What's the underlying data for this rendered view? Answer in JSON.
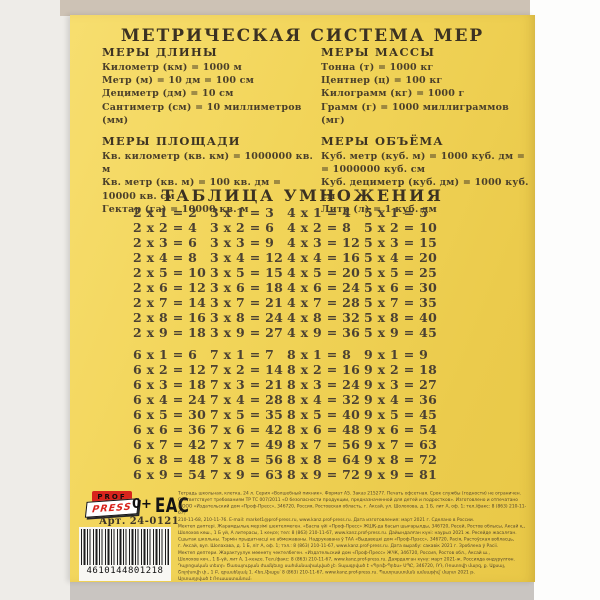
{
  "colors": {
    "page_yellow": "#f1d456",
    "logo_red": "#d7241c",
    "text_dark": "#3c3222",
    "backdrop_beige": "#cdc2b5"
  },
  "metric": {
    "title": "МЕТРИЧЕСКАЯ СИСТЕМА МЕР",
    "sections": [
      {
        "heading": "МЕРЫ ДЛИНЫ",
        "items": [
          "Километр (км) = 1000 м",
          "Метр (м) = 10 дм = 100 см",
          "Дециметр (дм) = 10 см",
          "Сантиметр (см) = 10 миллиметров (мм)"
        ]
      },
      {
        "heading": "МЕРЫ МАССЫ",
        "items": [
          "Тонна (т) = 1000 кг",
          "Центнер (ц) = 100 кг",
          "Килограмм (кг) = 1000 г",
          "Грамм (г) = 1000 миллиграммов (мг)"
        ]
      },
      {
        "heading": "МЕРЫ ПЛОЩАДИ",
        "items": [
          "Кв. километр (кв. км) = 1000000 кв. м",
          "Кв. метр (кв. м) = 100 кв. дм = 10000 кв. см",
          "Гектар (га) = 10000 кв. м"
        ]
      },
      {
        "heading": "МЕРЫ ОБЪЁМА",
        "items": [
          "Куб. метр (куб. м) = 1000 куб. дм =",
          "= 1000000 куб. см",
          "Куб. дециметр (куб. дм) = 1000 куб. см",
          "Литр (л) = 1 куб. дм"
        ]
      }
    ]
  },
  "multiplication": {
    "title": "ТАБЛИЦА УМНОЖЕНИЯ",
    "block1": [
      [
        "2 х 1 = 2",
        "2 х 2 = 4",
        "2 х 3 = 6",
        "2 х 4 = 8",
        "2 х 5 = 10",
        "2 х 6 = 12",
        "2 х 7 = 14",
        "2 х 8 = 16",
        "2 х 9 = 18"
      ],
      [
        "3 х 1 = 3",
        "3 х 2 = 6",
        "3 х 3 = 9",
        "3 х 4 = 12",
        "3 х 5 = 15",
        "3 х 6 = 18",
        "3 х 7 = 21",
        "3 х 8 = 24",
        "3 х 9 = 27"
      ],
      [
        "4 х 1 = 4",
        "4 х 2 = 8",
        "4 х 3 = 12",
        "4 х 4 = 16",
        "4 х 5 = 20",
        "4 х 6 = 24",
        "4 х 7 = 28",
        "4 х 8 = 32",
        "4 х 9 = 36"
      ],
      [
        "5 х 1 = 5",
        "5 х 2 = 10",
        "5 х 3 = 15",
        "5 х 4 = 20",
        "5 х 5 = 25",
        "5 х 6 = 30",
        "5 х 7 = 35",
        "5 х 8 = 40",
        "5 х 9 = 45"
      ]
    ],
    "block2": [
      [
        "6 х 1 = 6",
        "6 х 2 = 12",
        "6 х 3 = 18",
        "6 х 4 = 24",
        "6 х 5 = 30",
        "6 х 6 = 36",
        "6 х 7 = 42",
        "6 х 8 = 48",
        "6 х 9 = 54"
      ],
      [
        "7 х 1 = 7",
        "7 х 2 = 14",
        "7 х 3 = 21",
        "7 х 4 = 28",
        "7 х 5 = 35",
        "7 х 6 = 42",
        "7 х 7 = 49",
        "7 х 8 = 56",
        "7 х 9 = 63"
      ],
      [
        "8 х 1 = 8",
        "8 х 2 = 16",
        "8 х 3 = 24",
        "8 х 4 = 32",
        "8 х 5 = 40",
        "8 х 6 = 48",
        "8 х 7 = 56",
        "8 х 8 = 64",
        "8 х 9 = 72"
      ],
      [
        "9 х 1 = 9",
        "9 х 2 = 18",
        "9 х 3 = 27",
        "9 х 4 = 36",
        "9 х 5 = 45",
        "9 х 6 = 54",
        "9 х 7 = 63",
        "9 х 8 = 72",
        "9 х 9 = 81"
      ]
    ]
  },
  "footer": {
    "logo_top": "PROF",
    "logo_bottom": "PRESS",
    "age_rating": "0+",
    "eac_label": "ЕАС",
    "art_number": "Арт. 24-0121",
    "barcode_digits": "4610144801218",
    "fine_print_lines": [
      "Тетрадь школьная, клетка, 24 л. Серия «Волшебный пикник». Формат А5. Заказ 215277. Печать офсетная. Срок службы (годности) не ограничен.",
      "Соответствует требованиям ТР ТС 007/2011 «О безопасности продукции, предназначенной для детей и подростков». Изготовлено и отпечатано",
      "в ООО «Издательский дом «Проф-Пресс», 346720, Россия, Ростовская область, г. Аксай, ул. Шолохова, д. 1 Б, лит А, оф. 1; тел./факс: 8 (863) 210-11-67,",
      "210-11-68, 210-11-76. E-mail: market1@prof-press.ru, www.kanz.prof-press.ru. Дата изготовления: март 2021 г. Сделано в России.",
      "Мектеп дәптері. Жарамдылық мерзімі шектелмеген. «Баспа үйі «Проф-Пресс» ЖШҚ-да басып шығарылды, 346720, Ресей, Ростов облысы, Аксай қ.,",
      "Шолохов көш., 1 Б үй, А литерасы, 1 кеңсе; тел: 8 (863) 210-11-67, www.kanz.prof-press.ru. Дайындалған күні: наурыз 2021 ж. Ресейде жасалған.",
      "Сшытак школьны. Тэрмін прыдатнасці не абмежаваны. Надрукавана ў ТАА «Выдавецкі дом «Проф-Прэсс», 346720, Расія, Растоўская вобласць,",
      "г. Аксай, вул. Шолахава, д. 1 Б, літ А, оф. 1; тэл.: 8 (863) 210-11-67, www.kanz.prof-press.ru. Дата вырабу: сакавік 2021 г. Зроблена ў Расіі.",
      "Мектеп дептери. Жарактуулук мөөнөтү чектелбеген. «Издательский дом «Проф-Пресс» ЖЧК, 346720, Россия, Ростов обл., Аксай ш.,",
      "Шолохов көч., 1 Б-үй, лит А, 1-кеңсе. Тел./факс: 8 (863) 210-11-67, www.kanz.prof-press.ru. Даярдалган күнү: март 2021-ж. Россияда өндүрүлгөн.",
      "Դպրոցական տետր։ Ծառայության ժամկետը սահմանափակված չէ։ Տպագրված է «Պրոֆ-Պրես» ՍՊԸ, 346720, ՌԴ, Ռոստովի մարզ, ք. Աքսայ,",
      "Շոլոխովի փ., 1 Բ, գրասենյակ 1. Հեռ./ֆաքս՝ 8 (863) 210-11-67, www.kanz.prof-press.ru. Պատրաստման ամսաթիվ՝ մարտ 2021 թ.",
      "Արտադրված է Ռուսաստանում։"
    ]
  }
}
